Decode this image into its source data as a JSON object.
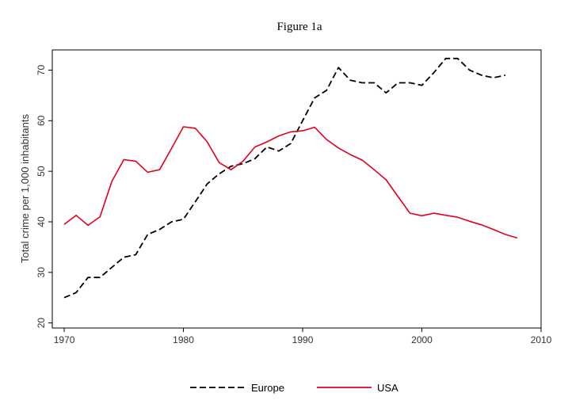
{
  "chart_data": {
    "type": "line",
    "title": "Figure 1a",
    "xlabel": "",
    "ylabel": "Total crime per 1,000 inhabitants",
    "xlim": [
      1969,
      2010
    ],
    "ylim": [
      19,
      74
    ],
    "xticks": [
      1970,
      1980,
      1990,
      2000,
      2010
    ],
    "yticks": [
      20,
      30,
      40,
      50,
      60,
      70
    ],
    "grid": false,
    "legend_position": "bottom",
    "series": [
      {
        "name": "Europe",
        "color": "#000000",
        "dash": "dashed",
        "x": [
          1970,
          1971,
          1972,
          1973,
          1974,
          1975,
          1976,
          1977,
          1978,
          1979,
          1980,
          1981,
          1982,
          1983,
          1984,
          1985,
          1986,
          1987,
          1988,
          1989,
          1990,
          1991,
          1992,
          1993,
          1994,
          1995,
          1996,
          1997,
          1998,
          1999,
          2000,
          2001,
          2002,
          2003,
          2004,
          2005,
          2006,
          2007
        ],
        "values": [
          25.0,
          26.0,
          29.0,
          29.0,
          31.0,
          33.0,
          33.5,
          37.5,
          38.5,
          40.0,
          40.5,
          44.0,
          47.5,
          49.5,
          51.0,
          51.5,
          52.5,
          54.8,
          54.0,
          55.5,
          60.0,
          64.5,
          66.0,
          70.5,
          68.0,
          67.5,
          67.5,
          65.5,
          67.5,
          67.5,
          67.0,
          69.5,
          72.3,
          72.3,
          70.0,
          69.0,
          68.5,
          69.0
        ]
      },
      {
        "name": "USA",
        "color": "#e3001b",
        "dash": "solid",
        "x": [
          1970,
          1971,
          1972,
          1973,
          1974,
          1975,
          1976,
          1977,
          1978,
          1979,
          1980,
          1981,
          1982,
          1983,
          1984,
          1985,
          1986,
          1987,
          1988,
          1989,
          1990,
          1991,
          1992,
          1993,
          1994,
          1995,
          1996,
          1997,
          1998,
          1999,
          2000,
          2001,
          2002,
          2003,
          2004,
          2005,
          2006,
          2007,
          2008
        ],
        "values": [
          39.5,
          41.3,
          39.3,
          41.0,
          48.0,
          52.3,
          52.0,
          49.8,
          50.3,
          54.5,
          58.8,
          58.5,
          55.8,
          51.7,
          50.3,
          52.0,
          54.8,
          55.8,
          57.0,
          57.8,
          58.0,
          58.7,
          56.3,
          54.6,
          53.3,
          52.2,
          50.3,
          48.3,
          45.0,
          41.7,
          41.2,
          41.7,
          41.3,
          40.9,
          40.1,
          39.4,
          38.5,
          37.5,
          36.8
        ]
      }
    ]
  }
}
